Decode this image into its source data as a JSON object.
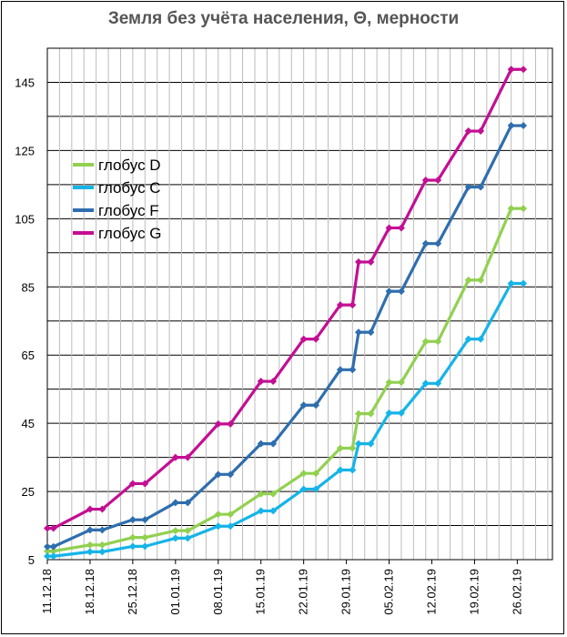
{
  "chart_data": {
    "type": "line",
    "title": "Земля без учёта населения, Θ, мерности",
    "ylim": [
      5,
      155
    ],
    "yticks": [
      "5",
      "25",
      "45",
      "65",
      "85",
      "105",
      "125",
      "145"
    ],
    "y_gridlines": [
      5,
      15,
      25,
      35,
      45,
      55,
      65,
      75,
      85,
      95,
      105,
      115,
      125,
      135,
      145,
      155
    ],
    "x_tick_labels": [
      "11.12.18",
      "18.12.18",
      "25.12.18",
      "01.01.19",
      "08.01.19",
      "15.01.19",
      "22.01.19",
      "29.01.19",
      "05.02.19",
      "12.02.19",
      "19.02.19",
      "26.02.19"
    ],
    "x_points": [
      "11.12.18",
      "12.12.18",
      "18.12.18",
      "20.12.18",
      "25.12.18",
      "27.12.18",
      "01.01.19",
      "03.01.19",
      "08.01.19",
      "10.01.19",
      "15.01.19",
      "17.01.19",
      "22.01.19",
      "24.01.19",
      "28.01.19",
      "30.01.19",
      "31.01.19",
      "02.02.19",
      "05.02.19",
      "07.02.19",
      "11.02.19",
      "13.02.19",
      "18.02.19",
      "20.02.19",
      "25.02.19",
      "27.02.19"
    ],
    "series": [
      {
        "name": "глобус D",
        "color": "#92d050",
        "values": [
          7.5,
          7.5,
          9.3,
          9.3,
          11.5,
          11.5,
          13.5,
          13.5,
          18.3,
          18.3,
          24.3,
          24.3,
          30.3,
          30.3,
          37.7,
          37.7,
          47.8,
          47.8,
          57.0,
          57.0,
          69.0,
          69.0,
          87.0,
          87.0,
          108.0,
          108.0
        ]
      },
      {
        "name": "глобус C",
        "color": "#16b4e8",
        "values": [
          6.0,
          6.0,
          7.3,
          7.3,
          8.9,
          8.9,
          11.3,
          11.3,
          14.8,
          14.8,
          19.3,
          19.3,
          25.7,
          25.7,
          31.3,
          31.3,
          39.0,
          39.0,
          48.0,
          48.0,
          56.7,
          56.7,
          69.7,
          69.7,
          86.0,
          86.0
        ]
      },
      {
        "name": "глобус F",
        "color": "#2f6eae",
        "values": [
          8.8,
          8.8,
          13.7,
          13.7,
          16.7,
          16.7,
          21.7,
          21.7,
          30.0,
          30.0,
          39.0,
          39.0,
          50.3,
          50.3,
          60.7,
          60.7,
          71.7,
          71.7,
          83.7,
          83.7,
          97.7,
          97.7,
          114.3,
          114.3,
          132.3,
          132.3
        ]
      },
      {
        "name": "глобус G",
        "color": "#c30f93",
        "values": [
          14.2,
          14.2,
          19.8,
          19.8,
          27.3,
          27.3,
          35.0,
          35.0,
          44.8,
          44.8,
          57.3,
          57.3,
          69.7,
          69.7,
          79.7,
          79.7,
          92.3,
          92.3,
          102.3,
          102.3,
          116.3,
          116.3,
          130.7,
          130.7,
          148.8,
          148.8
        ]
      }
    ],
    "legend_placement": "top-left inside plot",
    "grid": true
  }
}
